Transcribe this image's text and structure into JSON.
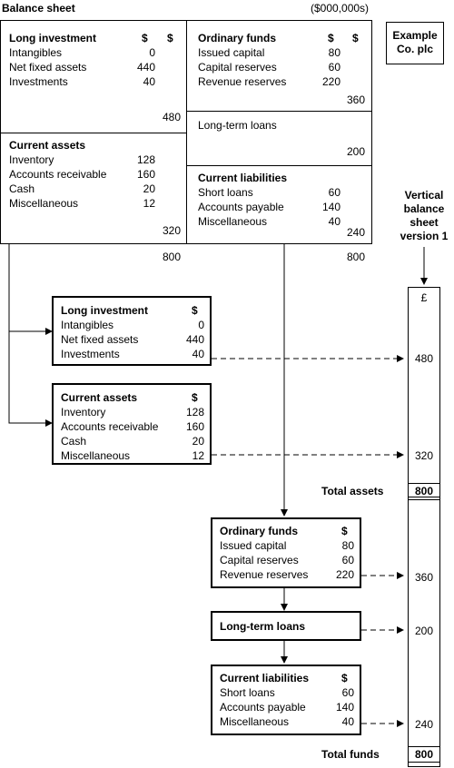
{
  "header": {
    "title": "Balance sheet",
    "units": "($000,000s)"
  },
  "company": {
    "line1": "Example",
    "line2": "Co. plc"
  },
  "top_sheet": {
    "long_investment": {
      "title": "Long investment",
      "col1": "$",
      "col2": "$",
      "items": [
        {
          "label": "Intangibles",
          "value": "0"
        },
        {
          "label": "Net fixed assets",
          "value": "440"
        },
        {
          "label": "Investments",
          "value": "40"
        }
      ],
      "total": "480"
    },
    "current_assets": {
      "title": "Current assets",
      "items": [
        {
          "label": "Inventory",
          "value": "128"
        },
        {
          "label": "Accounts receivable",
          "value": "160"
        },
        {
          "label": "Cash",
          "value": "20"
        },
        {
          "label": "Miscellaneous",
          "value": "12"
        }
      ],
      "total": "320"
    },
    "ordinary_funds": {
      "title": "Ordinary funds",
      "col1": "$",
      "col2": "$",
      "items": [
        {
          "label": "Issued capital",
          "value": "80"
        },
        {
          "label": "Capital reserves",
          "value": "60"
        },
        {
          "label": "Revenue reserves",
          "value": "220"
        }
      ],
      "total": "360"
    },
    "long_term_loans": {
      "title": "Long-term loans",
      "total": "200"
    },
    "current_liabilities": {
      "title": "Current liabilities",
      "items": [
        {
          "label": "Short loans",
          "value": "60"
        },
        {
          "label": "Accounts payable",
          "value": "140"
        },
        {
          "label": "Miscellaneous",
          "value": "40"
        }
      ],
      "total": "240"
    },
    "left_total": "800",
    "right_total": "800"
  },
  "vertical": {
    "title_lines": [
      "Vertical",
      "balance",
      "sheet",
      "version 1"
    ],
    "currency": "£",
    "long_investment": {
      "title": "Long investment",
      "col": "$",
      "items": [
        {
          "label": "Intangibles",
          "value": "0"
        },
        {
          "label": "Net fixed assets",
          "value": "440"
        },
        {
          "label": "Investments",
          "value": "40"
        }
      ]
    },
    "current_assets": {
      "title": "Current assets",
      "col": "$",
      "items": [
        {
          "label": "Inventory",
          "value": "128"
        },
        {
          "label": "Accounts receivable",
          "value": "160"
        },
        {
          "label": "Cash",
          "value": "20"
        },
        {
          "label": "Miscellaneous",
          "value": "12"
        }
      ]
    },
    "ordinary_funds": {
      "title": "Ordinary funds",
      "col": "$",
      "items": [
        {
          "label": "Issued capital",
          "value": "80"
        },
        {
          "label": "Capital reserves",
          "value": "60"
        },
        {
          "label": "Revenue reserves",
          "value": "220"
        }
      ]
    },
    "long_term_loans": {
      "title": "Long-term loans"
    },
    "current_liabilities": {
      "title": "Current liabilities",
      "col": "$",
      "items": [
        {
          "label": "Short loans",
          "value": "60"
        },
        {
          "label": "Accounts payable",
          "value": "140"
        },
        {
          "label": "Miscellaneous",
          "value": "40"
        }
      ]
    },
    "column_values": {
      "long_investment": "480",
      "current_assets": "320",
      "total_assets": "800",
      "ordinary_funds": "360",
      "long_term_loans": "200",
      "current_liabilities": "240",
      "total_funds": "800"
    },
    "total_assets_label": "Total assets",
    "total_funds_label": "Total funds"
  }
}
